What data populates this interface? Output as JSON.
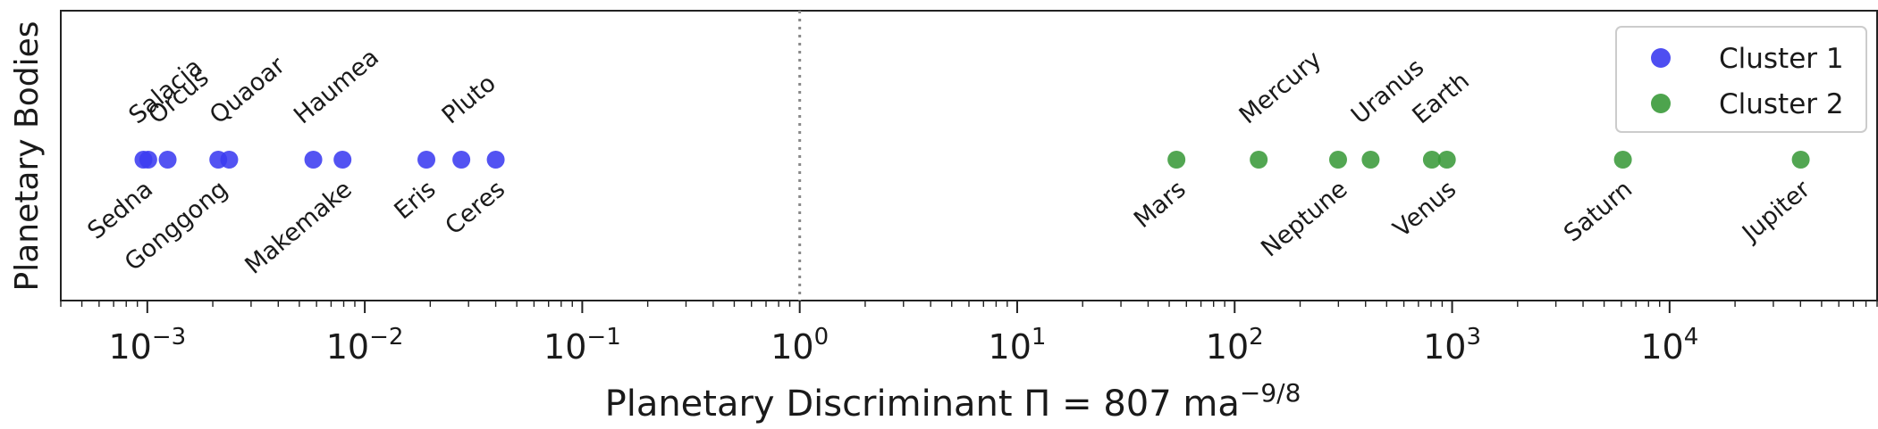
{
  "chart_data": {
    "type": "scatter",
    "x_scale": "log",
    "xlim": [
      0.0004,
      90000
    ],
    "xlabel": "Planetary Discriminant Π = 807 ma",
    "xlabel_superscript": "−9/8",
    "ylabel": "Planetary Bodies",
    "x_tick_values": [
      0.001,
      0.01,
      0.1,
      1,
      10,
      100,
      1000,
      10000
    ],
    "x_tick_exponents": [
      "−3",
      "−2",
      "−1",
      "0",
      "1",
      "2",
      "3",
      "4"
    ],
    "x_tick_base": "10",
    "grid": false,
    "legend_position": "top-right",
    "threshold_line": {
      "x": 1,
      "style": "dotted",
      "color": "#888888"
    },
    "series": [
      {
        "name": "Cluster 1",
        "color": "#3b3bf0",
        "points": [
          {
            "label": "Sedna",
            "x": 0.00096,
            "side": "below"
          },
          {
            "label": "Salacia",
            "x": 0.00101,
            "side": "above"
          },
          {
            "label": "Orcus",
            "x": 0.00124,
            "side": "above"
          },
          {
            "label": "Gonggong",
            "x": 0.00212,
            "side": "below"
          },
          {
            "label": "Quaoar",
            "x": 0.00238,
            "side": "above"
          },
          {
            "label": "Haumea",
            "x": 0.0058,
            "side": "above"
          },
          {
            "label": "Makemake",
            "x": 0.0079,
            "side": "below"
          },
          {
            "label": "Eris",
            "x": 0.0192,
            "side": "below"
          },
          {
            "label": "Pluto",
            "x": 0.0278,
            "side": "above"
          },
          {
            "label": "Ceres",
            "x": 0.04,
            "side": "below"
          }
        ]
      },
      {
        "name": "Cluster 2",
        "color": "#3a9a3a",
        "points": [
          {
            "label": "Mars",
            "x": 54,
            "side": "below"
          },
          {
            "label": "Mercury",
            "x": 129,
            "side": "above"
          },
          {
            "label": "Neptune",
            "x": 299,
            "side": "below"
          },
          {
            "label": "Uranus",
            "x": 422,
            "side": "above"
          },
          {
            "label": "Earth",
            "x": 807,
            "side": "above"
          },
          {
            "label": "Venus",
            "x": 946,
            "side": "below"
          },
          {
            "label": "Saturn",
            "x": 6100,
            "side": "below"
          },
          {
            "label": "Jupiter",
            "x": 40100,
            "side": "below"
          }
        ]
      }
    ]
  }
}
